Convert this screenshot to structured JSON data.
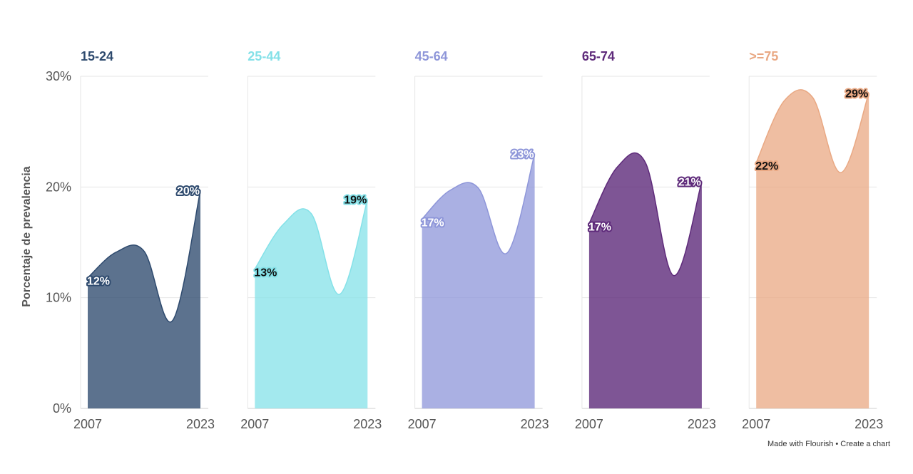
{
  "chart_data": {
    "type": "area",
    "ylabel": "Porcentaje de prevalencia",
    "ylim": [
      0,
      30
    ],
    "yticks": [
      0,
      10,
      20,
      30
    ],
    "ytick_labels": [
      "0%",
      "10%",
      "20%",
      "30%"
    ],
    "x": [
      2007,
      2011,
      2015,
      2019,
      2023
    ],
    "xtick_labels": [
      "2007",
      "2023"
    ],
    "grid": true,
    "series": [
      {
        "name": "15-24",
        "color": "#2e4a6e",
        "values": [
          11.8,
          14.1,
          14.2,
          7.9,
          19.7
        ],
        "labels": [
          {
            "text": "12%",
            "x": 2007
          },
          {
            "text": "20%",
            "x": 2023
          }
        ]
      },
      {
        "name": "25-44",
        "color": "#84e1e8",
        "values": [
          12.6,
          16.6,
          17.6,
          10.3,
          18.9
        ],
        "labels": [
          {
            "text": "13%",
            "x": 2007
          },
          {
            "text": "19%",
            "x": 2023
          }
        ]
      },
      {
        "name": "45-64",
        "color": "#8e96d9",
        "values": [
          17.1,
          19.7,
          19.9,
          14.0,
          23.0
        ],
        "labels": [
          {
            "text": "17%",
            "x": 2007
          },
          {
            "text": "23%",
            "x": 2023
          }
        ]
      },
      {
        "name": "65-74",
        "color": "#5e2a7a",
        "values": [
          16.7,
          21.8,
          22.2,
          12.0,
          20.5
        ],
        "labels": [
          {
            "text": "17%",
            "x": 2007
          },
          {
            "text": "21%",
            "x": 2023
          }
        ]
      },
      {
        "name": ">=75",
        "color": "#e9a883",
        "values": [
          22.2,
          27.8,
          28.1,
          21.3,
          28.5
        ],
        "labels": [
          {
            "text": "22%",
            "x": 2007
          },
          {
            "text": "29%",
            "x": 2023
          }
        ]
      }
    ]
  },
  "footer": {
    "made_with": "Made with Flourish",
    "separator": " • ",
    "create": "Create a chart"
  }
}
